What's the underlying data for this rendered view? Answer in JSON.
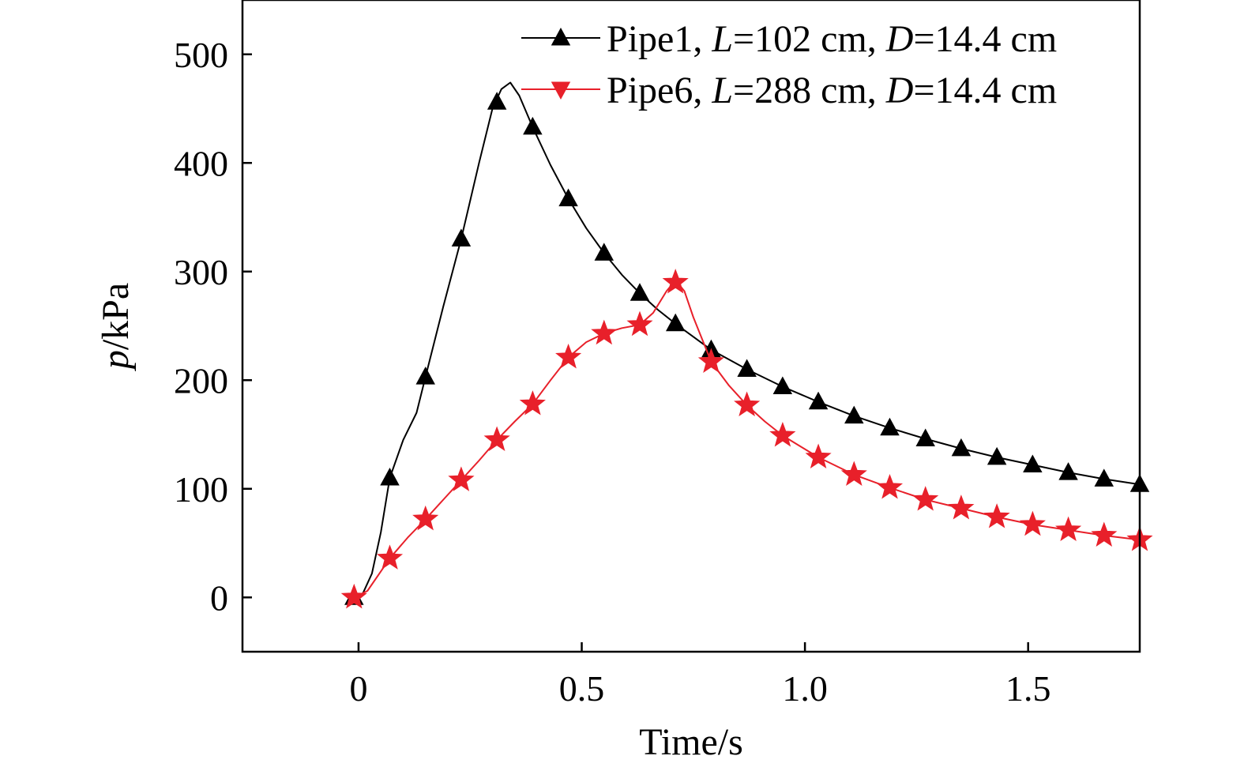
{
  "chart_data": {
    "type": "line",
    "xlabel": "Time/s",
    "ylabel_italic": "p",
    "ylabel_rest": "/kPa",
    "xlim": [
      -0.26,
      1.75
    ],
    "ylim": [
      -50,
      550
    ],
    "xticks": [
      0,
      0.5,
      1.0,
      1.5
    ],
    "xtick_labels": [
      "0",
      "0.5",
      "1.0",
      "1.5"
    ],
    "yticks": [
      0,
      100,
      200,
      300,
      400,
      500
    ],
    "ytick_labels": [
      "0",
      "100",
      "200",
      "300",
      "400",
      "500"
    ],
    "legend_position": "top-right",
    "grid": false,
    "series": [
      {
        "name_parts": [
          "Pipe1, ",
          "L",
          "=102 cm, ",
          "D",
          "=14.4 cm"
        ],
        "color": "#000000",
        "marker": "triangle-up",
        "x": [
          -0.01,
          0.07,
          0.15,
          0.23,
          0.31,
          0.39,
          0.47,
          0.55,
          0.63,
          0.71,
          0.79,
          0.87,
          0.95,
          1.03,
          1.11,
          1.19,
          1.27,
          1.35,
          1.43,
          1.51,
          1.59,
          1.67,
          1.75
        ],
        "y": [
          0,
          110,
          203,
          330,
          456,
          433,
          367,
          317,
          280,
          252,
          228,
          210,
          194,
          180,
          167,
          156,
          146,
          137,
          129,
          122,
          115,
          109,
          104
        ],
        "curve_x": [
          -0.01,
          0.01,
          0.03,
          0.05,
          0.07,
          0.1,
          0.13,
          0.15,
          0.19,
          0.23,
          0.27,
          0.3,
          0.32,
          0.34,
          0.36,
          0.39,
          0.43,
          0.47,
          0.51,
          0.55,
          0.59,
          0.63,
          0.67,
          0.71,
          0.75,
          0.79,
          0.87,
          0.95,
          1.03,
          1.11,
          1.19,
          1.27,
          1.35,
          1.43,
          1.51,
          1.59,
          1.67,
          1.75
        ],
        "curve_y": [
          0,
          4,
          22,
          60,
          110,
          145,
          170,
          203,
          268,
          330,
          400,
          450,
          468,
          474,
          462,
          433,
          398,
          367,
          340,
          317,
          297,
          280,
          265,
          252,
          240,
          228,
          210,
          194,
          180,
          167,
          156,
          146,
          137,
          129,
          122,
          115,
          109,
          104
        ]
      },
      {
        "name_parts": [
          "Pipe6, ",
          "L",
          "=288 cm, ",
          "D",
          "=14.4 cm"
        ],
        "color": "#e8202a",
        "marker": "star",
        "legend_marker": "triangle-down",
        "x": [
          -0.01,
          0.07,
          0.15,
          0.23,
          0.31,
          0.39,
          0.47,
          0.55,
          0.63,
          0.71,
          0.79,
          0.87,
          0.95,
          1.03,
          1.11,
          1.19,
          1.27,
          1.35,
          1.43,
          1.51,
          1.59,
          1.67,
          1.75
        ],
        "y": [
          0,
          36,
          72,
          108,
          145,
          178,
          221,
          243,
          251,
          290,
          217,
          177,
          149,
          129,
          113,
          101,
          90,
          82,
          74,
          67,
          62,
          57,
          53
        ],
        "curve_x": [
          -0.01,
          0.02,
          0.05,
          0.07,
          0.11,
          0.15,
          0.19,
          0.23,
          0.27,
          0.31,
          0.35,
          0.39,
          0.43,
          0.47,
          0.51,
          0.55,
          0.59,
          0.63,
          0.66,
          0.69,
          0.71,
          0.73,
          0.75,
          0.79,
          0.83,
          0.87,
          0.91,
          0.95,
          1.03,
          1.11,
          1.19,
          1.27,
          1.35,
          1.43,
          1.51,
          1.59,
          1.67,
          1.75
        ],
        "curve_y": [
          0,
          6,
          24,
          36,
          55,
          72,
          90,
          108,
          126,
          145,
          162,
          178,
          200,
          221,
          235,
          243,
          248,
          251,
          262,
          282,
          292,
          282,
          258,
          217,
          195,
          177,
          162,
          149,
          129,
          113,
          101,
          90,
          82,
          74,
          67,
          62,
          57,
          53
        ]
      }
    ]
  }
}
